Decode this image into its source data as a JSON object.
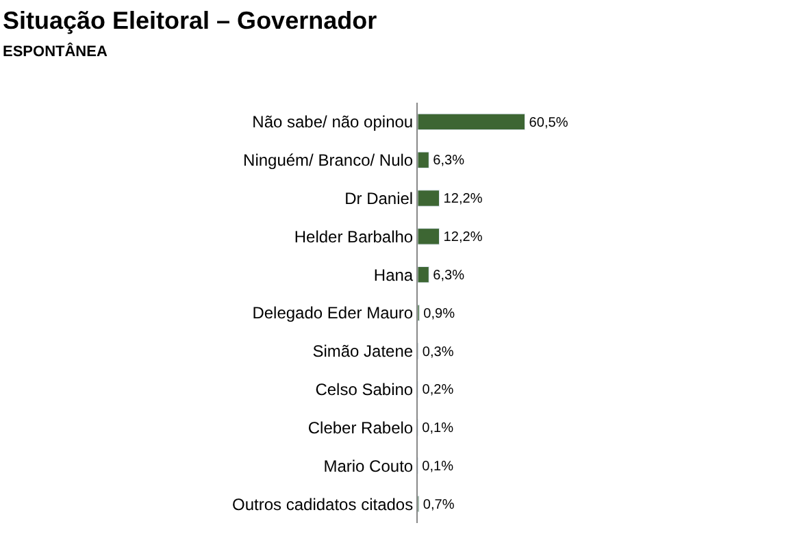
{
  "chart_data": {
    "type": "bar",
    "orientation": "horizontal",
    "title": "Situação Eleitoral – Governador",
    "subtitle": "ESPONTÂNEA",
    "categories": [
      "Não sabe/ não opinou",
      "Ninguém/ Branco/ Nulo",
      "Dr Daniel",
      "Helder Barbalho",
      "Hana",
      "Delegado Eder Mauro",
      "Simão Jatene",
      "Celso Sabino",
      "Cleber Rabelo",
      "Mario Couto",
      "Outros cadidatos citados"
    ],
    "values": [
      60.5,
      6.3,
      12.2,
      12.2,
      6.3,
      0.9,
      0.3,
      0.2,
      0.1,
      0.1,
      0.7
    ],
    "value_labels": [
      "60,5%",
      "6,3%",
      "12,2%",
      "12,2%",
      "6,3%",
      "0,9%",
      "0,3%",
      "0,2%",
      "0,1%",
      "0,1%",
      "0,7%"
    ],
    "color": "#3d6633",
    "legend": false
  }
}
